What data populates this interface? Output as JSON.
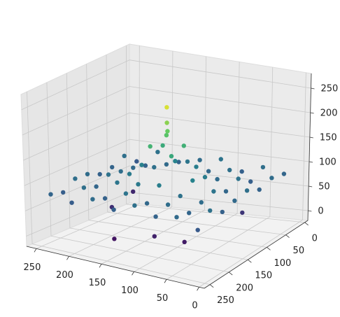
{
  "chart_data": {
    "type": "scatter3d",
    "colormap": "viridis",
    "grid": true,
    "xlim": [
      -8,
      265
    ],
    "ylim": [
      -8,
      265
    ],
    "zlim": [
      -20,
      280
    ],
    "xticks": [
      0,
      50,
      100,
      150,
      200,
      250
    ],
    "yticks": [
      0,
      50,
      100,
      150,
      200,
      250
    ],
    "zticks": [
      0,
      50,
      100,
      150,
      200,
      250
    ],
    "x": [
      16,
      48,
      80,
      112,
      144,
      176,
      208,
      240,
      16,
      48,
      80,
      112,
      144,
      176,
      208,
      240,
      16,
      48,
      80,
      112,
      144,
      176,
      208,
      240,
      16,
      48,
      80,
      112,
      144,
      176,
      208,
      240,
      16,
      48,
      80,
      112,
      144,
      176,
      208,
      240,
      16,
      48,
      80,
      112,
      144,
      176,
      208,
      240,
      16,
      48,
      80,
      112,
      144,
      176,
      208,
      240,
      16,
      48,
      80,
      112,
      144,
      176,
      208,
      240,
      128,
      126,
      130,
      128,
      60,
      200,
      150,
      30,
      220,
      100
    ],
    "y": [
      16,
      16,
      16,
      16,
      16,
      16,
      16,
      16,
      48,
      48,
      48,
      48,
      48,
      48,
      48,
      48,
      80,
      80,
      80,
      80,
      80,
      80,
      80,
      80,
      112,
      112,
      112,
      112,
      112,
      112,
      112,
      112,
      144,
      144,
      144,
      144,
      144,
      144,
      144,
      144,
      176,
      176,
      176,
      176,
      176,
      176,
      176,
      176,
      208,
      208,
      208,
      208,
      208,
      208,
      208,
      208,
      240,
      240,
      240,
      240,
      240,
      240,
      240,
      240,
      128,
      130,
      126,
      128,
      200,
      150,
      230,
      100,
      60,
      210
    ],
    "z": [
      82,
      90,
      76,
      95,
      88,
      79,
      93,
      70,
      88,
      75,
      92,
      84,
      97,
      86,
      78,
      91,
      79,
      94,
      87,
      105,
      110,
      92,
      85,
      80,
      91,
      83,
      104,
      158,
      152,
      108,
      89,
      77,
      85,
      96,
      110,
      150,
      162,
      102,
      94,
      88,
      77,
      88,
      93,
      106,
      101,
      97,
      82,
      90,
      93,
      81,
      89,
      84,
      95,
      78,
      91,
      74,
      70,
      86,
      79,
      92,
      76,
      88,
      73,
      81,
      205,
      190,
      180,
      235,
      20,
      35,
      15,
      40,
      30,
      25
    ]
  }
}
